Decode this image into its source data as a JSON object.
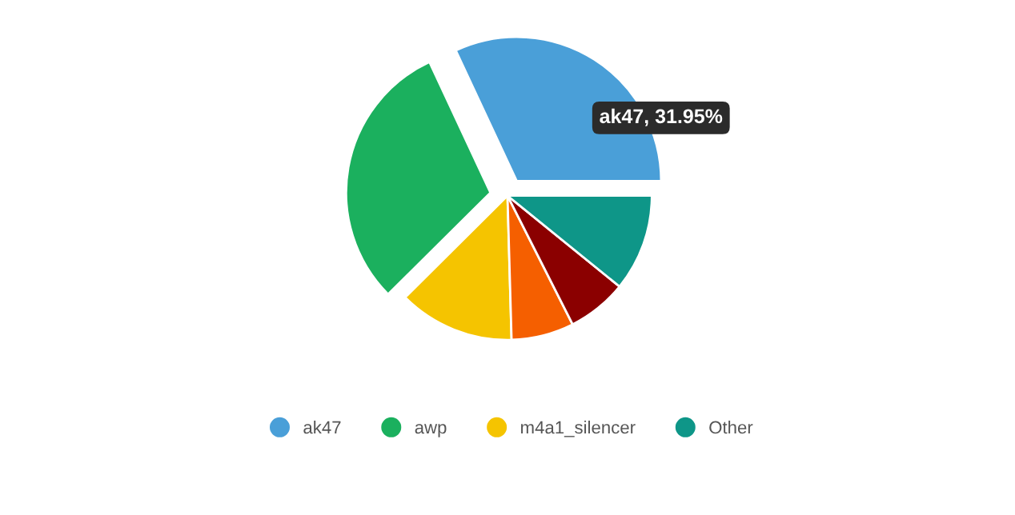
{
  "chart_data": {
    "type": "pie",
    "categories": [
      "ak47",
      "awp",
      "m4a1_silencer",
      null,
      null,
      "Other"
    ],
    "values": [
      31.95,
      30.5,
      13,
      7,
      6.7,
      10.85
    ],
    "colors": [
      "#4a9fd8",
      "#1bb05e",
      "#f5c400",
      "#f55f00",
      "#8b0000",
      "#0e9688"
    ],
    "annotations": [
      {
        "text": "ak47, 31.95%",
        "x": "ak47"
      }
    ],
    "legend": "bottom"
  }
}
